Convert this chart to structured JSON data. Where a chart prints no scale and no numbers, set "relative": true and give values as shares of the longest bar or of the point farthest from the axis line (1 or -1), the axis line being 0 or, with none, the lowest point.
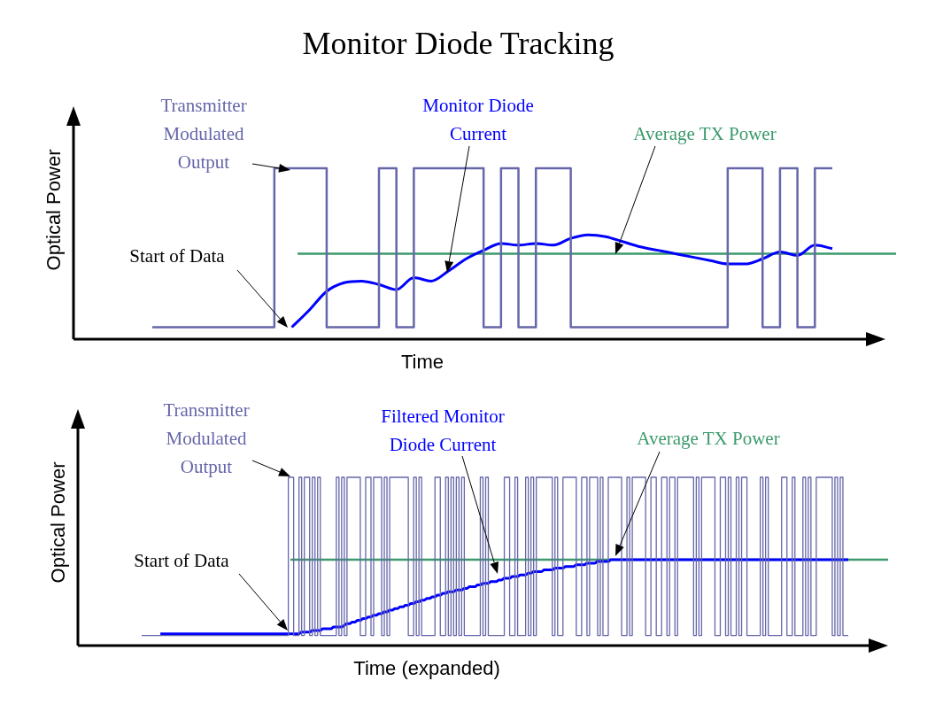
{
  "chart_data": [
    {
      "type": "line",
      "title": "Monitor Diode Tracking",
      "xlabel": "Time",
      "ylabel": "Optical Power",
      "relative": true,
      "marker": "none",
      "categories": [
        null,
        null,
        null,
        null,
        null,
        null,
        null,
        null,
        null,
        null,
        null,
        null,
        null,
        null,
        null,
        null,
        null,
        null,
        null,
        null,
        null,
        null,
        null,
        null,
        null,
        null,
        null,
        null,
        null,
        null,
        null,
        null,
        null,
        null,
        null,
        null,
        null,
        null,
        null,
        null
      ],
      "series": [
        {
          "name": "Transmitter Modulated Output",
          "type": "step",
          "color": "#6666aa",
          "values": [
            0.07,
            0.07,
            0.07,
            0.07,
            0.07,
            0.07,
            0.07,
            0.07,
            1,
            1,
            1,
            0.07,
            0.07,
            0.07,
            1,
            0.07,
            1,
            1,
            1,
            1,
            0.07,
            1,
            0.07,
            1,
            1,
            0.07,
            0.07,
            0.07,
            0.07,
            0.07,
            0.07,
            0.07,
            0.07,
            0.07,
            1,
            1,
            0.07,
            1,
            0.07,
            1
          ]
        },
        {
          "name": "Monitor Diode Current",
          "type": "line",
          "color": "#0000ff",
          "values": [
            null,
            null,
            null,
            null,
            null,
            null,
            null,
            null,
            0.07,
            0.17,
            0.28,
            0.33,
            0.34,
            0.32,
            0.29,
            0.36,
            0.34,
            0.4,
            0.47,
            0.52,
            0.56,
            0.55,
            0.56,
            0.55,
            0.59,
            0.61,
            0.6,
            0.57,
            0.54,
            0.52,
            0.5,
            0.48,
            0.46,
            0.44,
            0.44,
            0.47,
            0.51,
            0.49,
            0.55,
            0.53
          ]
        }
      ],
      "ref_lines": [
        {
          "axis": "y",
          "value": 0.5,
          "label": "Average TX Power",
          "color": "#3c9a6c"
        }
      ],
      "annotations": [
        "Start of Data"
      ]
    },
    {
      "type": "line",
      "xlabel": "Time (expanded)",
      "ylabel": "Optical Power",
      "relative": true,
      "marker": "none",
      "categories": [
        null,
        null,
        null,
        null,
        null,
        null,
        null,
        null,
        null,
        null,
        null,
        null,
        null,
        null,
        null,
        null,
        null,
        null,
        null,
        null,
        null,
        null,
        null,
        null,
        null,
        null,
        null,
        null,
        null,
        null,
        null,
        null,
        null,
        null,
        null,
        null,
        null,
        null,
        null,
        null,
        null,
        null,
        null,
        null,
        null,
        null,
        null,
        null,
        null,
        null,
        null,
        null,
        null,
        null,
        null,
        null,
        null,
        null,
        null,
        null,
        null,
        null,
        null,
        null,
        null,
        null,
        null,
        null,
        null,
        null,
        null,
        null,
        null,
        null,
        null,
        null,
        null,
        null,
        null,
        null,
        null,
        null,
        null,
        null,
        null,
        null,
        null,
        null,
        null,
        null,
        null,
        null,
        null,
        null,
        null,
        null,
        null,
        null,
        null,
        null,
        null,
        null,
        null,
        null,
        null,
        null,
        null,
        null,
        null,
        null,
        null,
        null,
        null,
        null,
        null,
        null,
        null,
        null,
        null,
        null,
        null,
        null,
        null,
        null,
        null,
        null,
        null,
        null,
        null,
        null,
        null,
        null,
        null,
        null,
        null,
        null,
        null,
        null,
        null,
        null,
        null,
        null,
        null,
        null,
        null,
        null,
        null,
        null,
        null,
        null,
        null,
        null,
        null,
        null,
        null,
        null,
        null,
        null,
        null,
        null,
        null,
        null,
        null,
        null,
        null,
        null,
        null,
        null,
        null,
        null,
        null,
        null,
        null,
        null,
        null,
        null,
        null,
        null,
        null,
        null,
        null,
        null,
        null,
        null,
        null,
        null,
        null,
        null,
        null,
        null,
        null,
        null,
        null,
        null,
        null,
        null,
        null,
        null,
        null,
        null,
        null,
        null,
        null,
        null,
        null,
        null,
        null,
        null,
        null,
        null,
        null,
        null,
        null,
        null,
        null,
        null,
        null,
        null,
        null,
        null,
        null,
        null,
        null,
        null,
        null,
        null,
        null,
        null,
        null,
        null,
        null,
        null,
        null,
        null,
        null,
        null,
        null,
        null,
        null,
        null,
        null,
        null,
        null,
        null,
        null,
        null,
        null,
        null,
        null,
        null,
        null,
        null,
        null,
        null,
        null,
        null,
        null,
        null,
        null,
        null,
        null,
        null,
        null,
        null,
        null,
        null
      ],
      "series": [
        {
          "name": "Transmitter Modulated Output",
          "type": "step",
          "color": "#6666aa",
          "values": [
            0.06,
            0.06,
            0.06,
            0.06,
            0.06,
            0.06,
            0.06,
            0.06,
            0.06,
            0.06,
            0.06,
            0.06,
            0.06,
            0.06,
            0.06,
            0.06,
            0.06,
            0.06,
            0.06,
            0.06,
            0.06,
            0.06,
            0.06,
            0.06,
            0.06,
            0.06,
            0.06,
            0.06,
            0.06,
            0.06,
            0.06,
            0.06,
            0.06,
            0.06,
            0.06,
            0.06,
            0.06,
            0.06,
            0.06,
            0.06,
            0.06,
            0.06,
            0.06,
            0.06,
            0.06,
            0.06,
            0.06,
            0.06,
            0.06,
            0.06,
            0.06,
            0.06,
            0.06,
            0.06,
            0.06,
            0.06,
            1,
            1,
            0.06,
            0.06,
            1,
            0.06,
            1,
            1,
            0.06,
            1,
            0.06,
            1,
            0.06,
            0.06,
            0.06,
            0.06,
            0.06,
            0.06,
            1,
            0.06,
            1,
            0.06,
            1,
            1,
            1,
            1,
            1,
            0.06,
            0.06,
            1,
            1,
            0.06,
            1,
            1,
            1,
            0.06,
            1,
            0.06,
            1,
            1,
            1,
            1,
            1,
            1,
            1,
            0.06,
            0.06,
            1,
            0.06,
            1,
            0.06,
            0.06,
            0.06,
            0.06,
            0.06,
            1,
            1,
            0.06,
            0.06,
            1,
            0.06,
            1,
            0.06,
            1,
            0.06,
            1,
            0.06,
            0.06,
            0.06,
            0.06,
            0.06,
            0.06,
            1,
            0.06,
            1,
            0.06,
            0.06,
            0.06,
            0.06,
            0.06,
            0.06,
            1,
            1,
            0.06,
            0.06,
            1,
            0.06,
            0.06,
            0.06,
            1,
            0.06,
            1,
            0.06,
            1,
            1,
            1,
            1,
            1,
            1,
            0.06,
            1,
            0.06,
            0.06,
            1,
            1,
            1,
            1,
            1,
            0.06,
            0.06,
            1,
            1,
            0.06,
            1,
            1,
            1,
            0.06,
            1,
            0.06,
            0.06,
            1,
            1,
            1,
            1,
            1,
            0.06,
            0.06,
            1,
            0.06,
            1,
            1,
            1,
            1,
            1,
            0.06,
            0.06,
            1,
            1,
            0.06,
            0.06,
            1,
            1,
            0.06,
            1,
            1,
            0.06,
            1,
            1,
            1,
            1,
            1,
            1,
            0.06,
            1,
            0.06,
            1,
            1,
            1,
            1,
            1,
            0.06,
            0.06,
            1,
            1,
            0.06,
            1,
            0.06,
            0.06,
            1,
            0.06,
            1,
            1,
            0.06,
            0.06,
            0.06,
            0.06,
            0.06,
            1,
            0.06,
            1,
            0.06,
            0.06,
            0.06,
            0.06,
            0.06,
            1,
            1,
            0.06,
            0.06,
            1,
            0.06,
            0.06,
            0.06,
            1,
            0.06,
            1,
            0.06,
            0.06,
            1,
            1,
            1,
            1,
            1,
            1,
            0.06,
            1,
            0.06,
            1,
            0.06,
            0.06
          ]
        },
        {
          "name": "Filtered Monitor Diode Current",
          "type": "line",
          "color": "#0000ff",
          "values": [
            null,
            null,
            null,
            null,
            null,
            null,
            null,
            0.07,
            0.07,
            0.07,
            0.07,
            0.07,
            0.07,
            0.07,
            0.07,
            0.07,
            0.07,
            0.07,
            0.07,
            0.07,
            0.07,
            0.07,
            0.07,
            0.07,
            0.07,
            0.07,
            0.07,
            0.07,
            0.07,
            0.07,
            0.07,
            0.07,
            0.07,
            0.07,
            0.07,
            0.07,
            0.07,
            0.07,
            0.07,
            0.07,
            0.07,
            0.07,
            0.07,
            0.07,
            0.07,
            0.07,
            0.07,
            0.07,
            0.07,
            0.07,
            0.07,
            0.07,
            0.07,
            0.07,
            0.07,
            0.07,
            0.07,
            0.07,
            0.07,
            0.07,
            0.08,
            0.08,
            0.08,
            0.08,
            0.09,
            0.09,
            0.09,
            0.09,
            0.1,
            0.1,
            0.1,
            0.1,
            0.11,
            0.11,
            0.11,
            0.11,
            0.12,
            0.13,
            0.13,
            0.14,
            0.14,
            0.15,
            0.15,
            0.16,
            0.16,
            0.17,
            0.17,
            0.18,
            0.18,
            0.19,
            0.19,
            0.2,
            0.2,
            0.21,
            0.21,
            0.22,
            0.22,
            0.23,
            0.23,
            0.24,
            0.24,
            0.25,
            0.25,
            0.26,
            0.26,
            0.27,
            0.27,
            0.28,
            0.28,
            0.29,
            0.29,
            0.3,
            0.3,
            0.31,
            0.31,
            0.32,
            0.32,
            0.32,
            0.33,
            0.33,
            0.33,
            0.34,
            0.34,
            0.35,
            0.35,
            0.35,
            0.36,
            0.36,
            0.37,
            0.37,
            0.37,
            0.38,
            0.38,
            0.38,
            0.39,
            0.39,
            0.4,
            0.4,
            0.4,
            0.41,
            0.41,
            0.41,
            0.42,
            0.42,
            0.42,
            0.43,
            0.43,
            0.44,
            0.44,
            0.44,
            0.44,
            0.45,
            0.45,
            0.45,
            0.45,
            0.46,
            0.46,
            0.46,
            0.46,
            0.47,
            0.47,
            0.47,
            0.47,
            0.48,
            0.48,
            0.48,
            0.48,
            0.49,
            0.49,
            0.49,
            0.49,
            0.5,
            0.5,
            0.5,
            0.5,
            0.5,
            0.51,
            0.51,
            0.51,
            0.51,
            0.51,
            0.51,
            0.51,
            0.51,
            0.51,
            0.51,
            0.51,
            0.51,
            0.51,
            0.51,
            0.51,
            0.51,
            0.51,
            0.51,
            0.51,
            0.51,
            0.51,
            0.51,
            0.51,
            0.51,
            0.51,
            0.51,
            0.51,
            0.51,
            0.51,
            0.51,
            0.51,
            0.51,
            0.51,
            0.51,
            0.51,
            0.51,
            0.51,
            0.51,
            0.51,
            0.51,
            0.51,
            0.51,
            0.51,
            0.51,
            0.51,
            0.51,
            0.51,
            0.51,
            0.51,
            0.51,
            0.51,
            0.51,
            0.51,
            0.51,
            0.51,
            0.51,
            0.51,
            0.51,
            0.51,
            0.51,
            0.51,
            0.51,
            0.51,
            0.51,
            0.51,
            0.51,
            0.51,
            0.51,
            0.51,
            0.51,
            0.51,
            0.51,
            0.51,
            0.51,
            0.51,
            0.51,
            0.51,
            0.51,
            0.51,
            0.51,
            0.51,
            0.51,
            0.51,
            0.51,
            0.51,
            0.51,
            0.51,
            0.51,
            0.51,
            0.51
          ]
        }
      ],
      "ref_lines": [
        {
          "axis": "y",
          "value": 0.51,
          "label": "Average TX Power",
          "color": "#3c9a6c"
        }
      ],
      "annotations": [
        "Start of Data"
      ]
    }
  ]
}
